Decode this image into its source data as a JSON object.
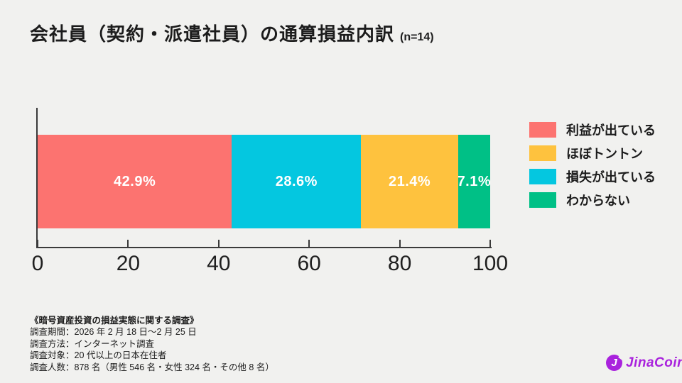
{
  "background": "#f1f1ef",
  "title": {
    "text": "会社員（契約・派遣社員）の通算損益内訳",
    "sample": "(n=14)"
  },
  "chart_data": {
    "type": "bar",
    "orientation": "horizontal",
    "stacked": true,
    "title": "会社員（契約・派遣社員）の通算損益内訳 (n=14)",
    "xlim": [
      0,
      100
    ],
    "x_ticks": [
      "0",
      "20",
      "40",
      "60",
      "80",
      "100"
    ],
    "x_tick_values": [
      0,
      20,
      40,
      60,
      80,
      100
    ],
    "grid": false,
    "axis_color": "#3a3a3a",
    "value_label_color": "#ffffff",
    "segments": [
      {
        "label": "利益が出ている",
        "value": 42.9,
        "text": "42.9%",
        "color": "#fc7370"
      },
      {
        "label": "損失が出ている",
        "value": 28.6,
        "text": "28.6%",
        "color": "#04c7e0"
      },
      {
        "label": "ほぼトントン",
        "value": 21.4,
        "text": "21.4%",
        "color": "#fec23e"
      },
      {
        "label": "わからない",
        "value": 7.1,
        "text": "7.1%",
        "color": "#00c086"
      }
    ],
    "legend_position": "right",
    "legend": [
      {
        "label": "利益が出ている",
        "color": "#fc7370"
      },
      {
        "label": "ほぼトントン",
        "color": "#fec23e"
      },
      {
        "label": "損失が出ている",
        "color": "#04c7e0"
      },
      {
        "label": "わからない",
        "color": "#00c086"
      }
    ]
  },
  "footer": {
    "lines": [
      "《暗号資産投資の損益実態に関する調査》",
      "調査期間：2026 年 2 月 18 日～2 月 25 日",
      "調査方法：インターネット調査",
      "調査対象：20 代以上の日本在住者",
      "調査人数：878 名（男性 546 名・女性 324 名・その他 8 名）"
    ]
  },
  "logo": {
    "text": "JinaCoin",
    "mark": "J",
    "color": "#a922dd"
  }
}
